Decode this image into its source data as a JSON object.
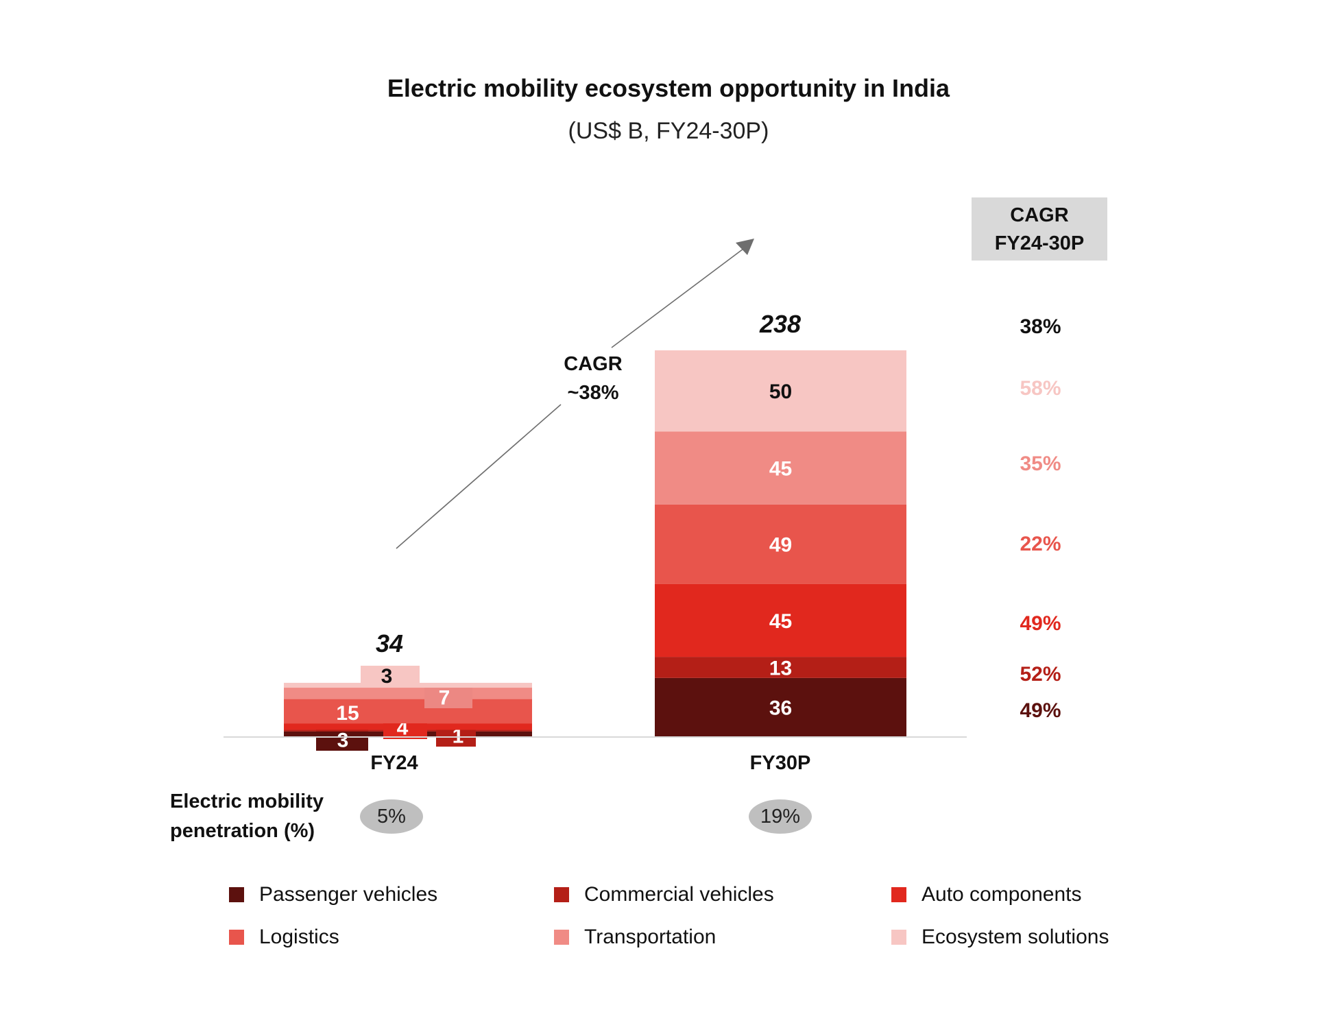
{
  "chart_data": {
    "type": "bar",
    "stacked": true,
    "title": "Electric mobility ecosystem opportunity in India",
    "subtitle": "(US$ B, FY24-30P)",
    "xlabel": "",
    "ylabel": "",
    "categories": [
      "FY24",
      "FY30P"
    ],
    "totals": [
      "34",
      "238"
    ],
    "series": [
      {
        "name": "Passenger vehicles",
        "color": "#5c110e",
        "values": [
          3,
          36
        ],
        "cagr": "49%"
      },
      {
        "name": "Commercial vehicles",
        "color": "#b41f17",
        "values": [
          1,
          13
        ],
        "cagr": "52%"
      },
      {
        "name": "Auto components",
        "color": "#e1281e",
        "values": [
          4,
          45
        ],
        "cagr": "49%"
      },
      {
        "name": "Logistics",
        "color": "#e8554c",
        "values": [
          15,
          49
        ],
        "cagr": "22%"
      },
      {
        "name": "Transportation",
        "color": "#f08b85",
        "values": [
          7,
          45
        ],
        "cagr": "35%"
      },
      {
        "name": "Ecosystem solutions",
        "color": "#f7c6c3",
        "values": [
          3,
          50
        ],
        "cagr": "58%"
      }
    ],
    "ylim": [
      0,
      238
    ],
    "grid": false,
    "legend_position": "bottom",
    "cagr_header": [
      "CAGR",
      "FY24-30P"
    ],
    "total_cagr": "38%",
    "arrow_annotation": [
      "CAGR",
      "~38%"
    ],
    "penetration_label": [
      "Electric mobility",
      "penetration (%)"
    ],
    "penetration_values": [
      "5%",
      "19%"
    ]
  }
}
